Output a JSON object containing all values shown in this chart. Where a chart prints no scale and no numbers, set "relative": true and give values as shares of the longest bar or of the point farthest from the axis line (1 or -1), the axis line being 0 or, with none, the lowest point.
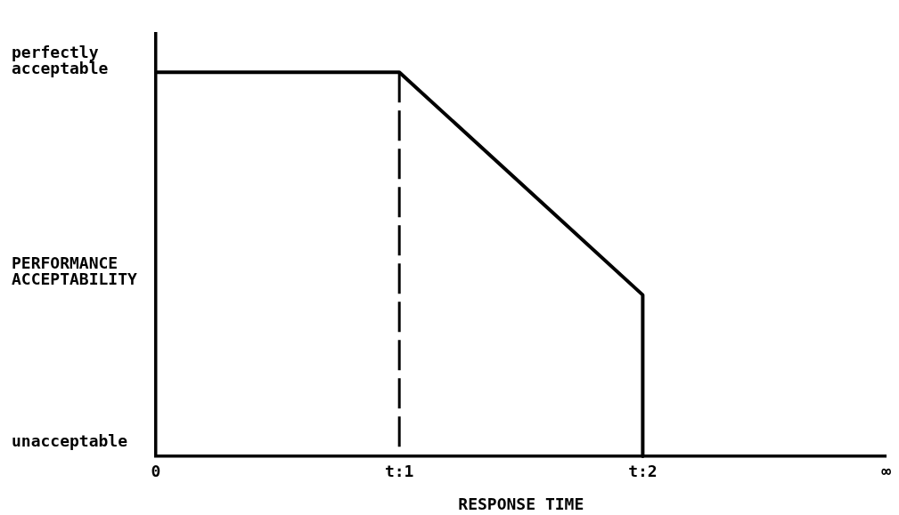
{
  "chart_data": {
    "type": "line",
    "xlabel": "RESPONSE TIME",
    "ylabel": "PERFORMANCE ACCEPTABILITY",
    "relative": true,
    "xlim": [
      0,
      3
    ],
    "xticks": [
      0,
      {
        "value": 1,
        "label": "t:1"
      },
      {
        "value": 2,
        "label": "t:2"
      },
      {
        "value": 3,
        "label": "∞"
      }
    ],
    "annotations": [
      {
        "text": "perfectly acceptable",
        "x": 0,
        "y": 1
      },
      "unacceptable"
    ],
    "series": [
      {
        "color": "#000000",
        "x": [
          0,
          1,
          2,
          2
        ],
        "values": [
          1,
          1,
          0.42,
          0
        ],
        "line_style": "solid"
      }
    ],
    "ref_lines": [
      {
        "axis": "x",
        "value": 1,
        "color": "#000000",
        "line_style": "dashed"
      }
    ],
    "marker": "none"
  }
}
